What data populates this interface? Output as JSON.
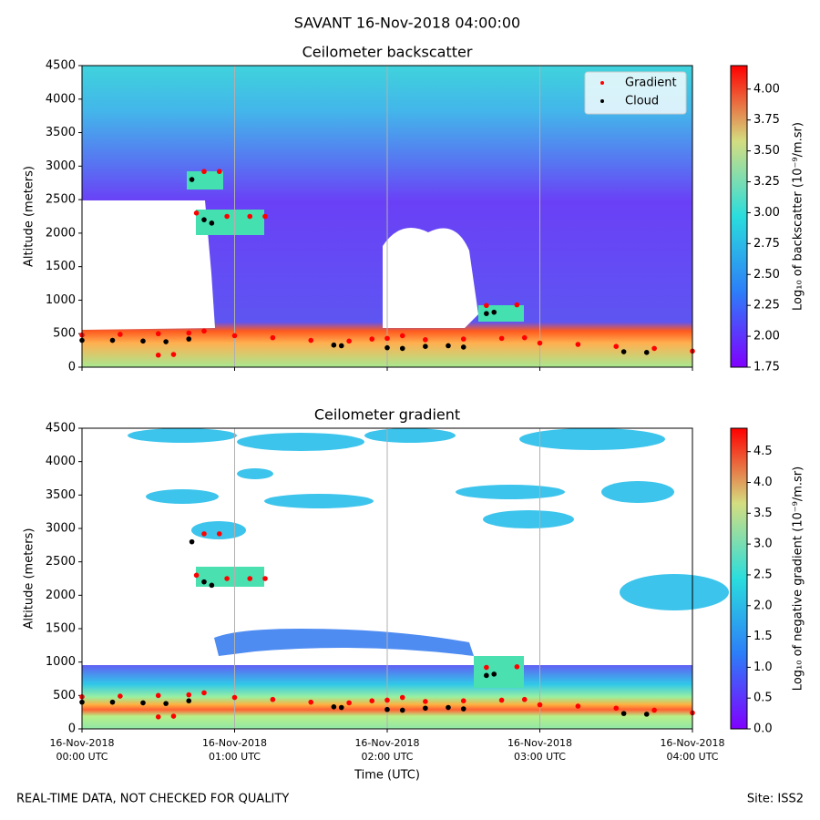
{
  "title": "SAVANT 16-Nov-2018 04:00:00",
  "footer_left": "REAL-TIME DATA, NOT CHECKED FOR QUALITY",
  "footer_right": "Site: ISS2",
  "chart_data": [
    {
      "type": "heatmap",
      "title": "Ceilometer backscatter",
      "ylabel": "Altitude (meters)",
      "xlim": [
        0,
        4
      ],
      "xticks": [
        0,
        1,
        2,
        3,
        4
      ],
      "grid": true,
      "ylim": [
        0,
        4500
      ],
      "yticks": [
        0,
        500,
        1000,
        1500,
        2000,
        2500,
        3000,
        3500,
        4000,
        4500
      ],
      "legend": "upper right",
      "colorbar": {
        "label": "Log₁₀ of backscatter (10⁻⁹/m.sr)",
        "lim": [
          1.75,
          4.19
        ],
        "ticks": [
          {
            "value": 1.75,
            "label": "1.75"
          },
          {
            "value": 2,
            "label": "2.00"
          },
          {
            "value": 2.25,
            "label": "2.25"
          },
          {
            "value": 2.5,
            "label": "2.50"
          },
          {
            "value": 2.75,
            "label": "2.75"
          },
          {
            "value": 3,
            "label": "3.00"
          },
          {
            "value": 3.25,
            "label": "3.25"
          },
          {
            "value": 3.5,
            "label": "3.50"
          },
          {
            "value": 3.75,
            "label": "3.75"
          },
          {
            "value": 4,
            "label": "4.00"
          }
        ]
      },
      "series": [
        {
          "name": "Gradient",
          "color": "#ff0000",
          "x": [
            0,
            0.25,
            0.5,
            0.7,
            0.8,
            1.0,
            1.25,
            1.5,
            1.75,
            1.9,
            2.0,
            2.1,
            2.25,
            2.5,
            2.75,
            2.9,
            3.0,
            3.25,
            3.5,
            3.75,
            4.0,
            0.8,
            0.9,
            0.95,
            1.1,
            1.2,
            0.75,
            2.65,
            2.85,
            0.5,
            0.6
          ],
          "values": [
            480,
            490,
            500,
            510,
            540,
            470,
            440,
            400,
            390,
            420,
            430,
            470,
            410,
            420,
            430,
            440,
            360,
            340,
            310,
            280,
            240,
            2920,
            2920,
            2250,
            2250,
            2250,
            2300,
            920,
            930,
            180,
            190
          ]
        },
        {
          "name": "Cloud",
          "color": "#000000",
          "x": [
            0,
            0.2,
            0.4,
            0.55,
            0.7,
            0.72,
            0.8,
            0.85,
            1.65,
            1.7,
            2.0,
            2.1,
            2.25,
            2.4,
            2.5,
            2.65,
            2.7,
            3.55,
            3.7
          ],
          "values": [
            400,
            400,
            390,
            380,
            420,
            2800,
            2200,
            2150,
            330,
            320,
            290,
            280,
            310,
            320,
            300,
            800,
            820,
            230,
            220
          ]
        }
      ]
    },
    {
      "type": "heatmap",
      "title": "Ceilometer gradient",
      "ylabel": "Altitude (meters)",
      "xlabel": "Time (UTC)",
      "xlim": [
        0,
        4
      ],
      "grid": true,
      "xticks": [
        {
          "value": 0,
          "label": "16-Nov-2018\n00:00 UTC"
        },
        {
          "value": 1,
          "label": "16-Nov-2018\n01:00 UTC"
        },
        {
          "value": 2,
          "label": "16-Nov-2018\n02:00 UTC"
        },
        {
          "value": 3,
          "label": "16-Nov-2018\n03:00 UTC"
        },
        {
          "value": 4,
          "label": "16-Nov-2018\n04:00 UTC"
        }
      ],
      "ylim": [
        0,
        4500
      ],
      "yticks": [
        0,
        500,
        1000,
        1500,
        2000,
        2500,
        3000,
        3500,
        4000,
        4500
      ],
      "colorbar": {
        "label": "Log₁₀ of negative gradient (10⁻⁹/m.sr)",
        "lim": [
          0,
          4.88
        ],
        "ticks": [
          {
            "value": 0,
            "label": "0.0"
          },
          {
            "value": 0.5,
            "label": "0.5"
          },
          {
            "value": 1,
            "label": "1.0"
          },
          {
            "value": 1.5,
            "label": "1.5"
          },
          {
            "value": 2,
            "label": "2.0"
          },
          {
            "value": 2.5,
            "label": "2.5"
          },
          {
            "value": 3,
            "label": "3.0"
          },
          {
            "value": 3.5,
            "label": "3.5"
          },
          {
            "value": 4,
            "label": "4.0"
          },
          {
            "value": 4.5,
            "label": "4.5"
          }
        ]
      },
      "series": [
        {
          "name": "Gradient",
          "color": "#ff0000",
          "x": [
            0,
            0.25,
            0.5,
            0.7,
            0.8,
            1.0,
            1.25,
            1.5,
            1.75,
            1.9,
            2.0,
            2.1,
            2.25,
            2.5,
            2.75,
            2.9,
            3.0,
            3.25,
            3.5,
            3.75,
            4.0,
            0.8,
            0.9,
            0.95,
            1.1,
            1.2,
            0.75,
            2.65,
            2.85,
            0.5,
            0.6
          ],
          "values": [
            480,
            490,
            500,
            510,
            540,
            470,
            440,
            400,
            390,
            420,
            430,
            470,
            410,
            420,
            430,
            440,
            360,
            340,
            310,
            280,
            240,
            2920,
            2920,
            2250,
            2250,
            2250,
            2300,
            920,
            930,
            180,
            190
          ]
        },
        {
          "name": "Cloud",
          "color": "#000000",
          "x": [
            0,
            0.2,
            0.4,
            0.55,
            0.7,
            0.72,
            0.8,
            0.85,
            1.65,
            1.7,
            2.0,
            2.1,
            2.25,
            2.4,
            2.5,
            2.65,
            2.7,
            3.55,
            3.7
          ],
          "values": [
            400,
            400,
            390,
            380,
            420,
            2800,
            2200,
            2150,
            330,
            320,
            290,
            280,
            310,
            320,
            300,
            800,
            820,
            230,
            220
          ]
        }
      ]
    }
  ]
}
